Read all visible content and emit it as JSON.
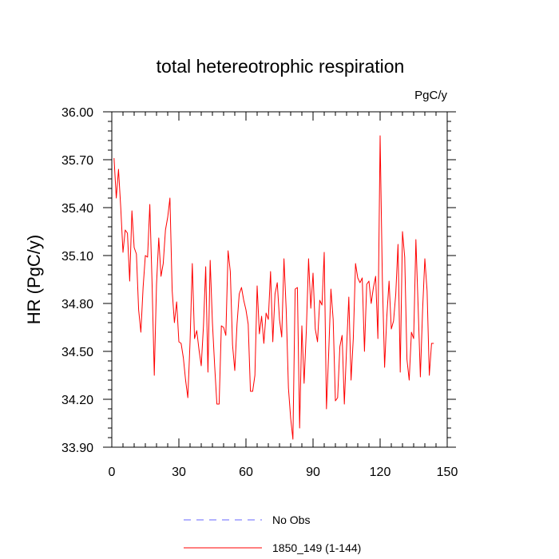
{
  "chart_data": {
    "type": "line",
    "title": "total hetereotrophic respiration",
    "units": "PgC/y",
    "ylabel": "HR  (PgC/y)",
    "xlabel": "",
    "xlim": [
      0,
      150
    ],
    "ylim": [
      33.9,
      36.0
    ],
    "xticks": [
      0,
      30,
      60,
      90,
      120,
      150
    ],
    "xtick_labels": [
      "0",
      "30",
      "60",
      "90",
      "120",
      "150"
    ],
    "yticks": [
      33.9,
      34.2,
      34.5,
      34.8,
      35.1,
      35.4,
      35.7,
      36.0
    ],
    "ytick_labels": [
      "33.90",
      "34.20",
      "34.50",
      "34.80",
      "35.10",
      "35.40",
      "35.70",
      "36.00"
    ],
    "grid": false,
    "legend_position": "bottom",
    "legend": [
      {
        "label": "No Obs",
        "color": "#6666ff",
        "style": "dashed"
      },
      {
        "label": "1850_149 (1-144)",
        "color": "#ff0000",
        "style": "solid"
      }
    ],
    "series": [
      {
        "name": "1850_149 (1-144)",
        "color": "#ff0000",
        "x": [
          1,
          2,
          3,
          4,
          5,
          6,
          7,
          8,
          9,
          10,
          11,
          12,
          13,
          14,
          15,
          16,
          17,
          18,
          19,
          20,
          21,
          22,
          23,
          24,
          25,
          26,
          27,
          28,
          29,
          30,
          31,
          32,
          33,
          34,
          35,
          36,
          37,
          38,
          39,
          40,
          41,
          42,
          43,
          44,
          45,
          46,
          47,
          48,
          49,
          50,
          51,
          52,
          53,
          54,
          55,
          56,
          57,
          58,
          59,
          60,
          61,
          62,
          63,
          64,
          65,
          66,
          67,
          68,
          69,
          70,
          71,
          72,
          73,
          74,
          75,
          76,
          77,
          78,
          79,
          80,
          81,
          82,
          83,
          84,
          85,
          86,
          87,
          88,
          89,
          90,
          91,
          92,
          93,
          94,
          95,
          96,
          97,
          98,
          99,
          100,
          101,
          102,
          103,
          104,
          105,
          106,
          107,
          108,
          109,
          110,
          111,
          112,
          113,
          114,
          115,
          116,
          117,
          118,
          119,
          120,
          121,
          122,
          123,
          124,
          125,
          126,
          127,
          128,
          129,
          130,
          131,
          132,
          133,
          134,
          135,
          136,
          137,
          138,
          139,
          140,
          141,
          142,
          143,
          144
        ],
        "y": [
          35.71,
          35.46,
          35.64,
          35.4,
          35.12,
          35.26,
          35.24,
          34.94,
          35.38,
          35.15,
          35.11,
          34.76,
          34.62,
          34.9,
          35.1,
          35.09,
          35.42,
          34.93,
          34.35,
          34.92,
          35.21,
          34.97,
          35.05,
          35.26,
          35.34,
          35.46,
          34.88,
          34.68,
          34.81,
          34.56,
          34.55,
          34.46,
          34.32,
          34.21,
          34.56,
          35.05,
          34.58,
          34.63,
          34.51,
          34.41,
          34.66,
          35.03,
          34.37,
          35.07,
          34.68,
          34.41,
          34.17,
          34.17,
          34.66,
          34.65,
          34.6,
          35.13,
          35.0,
          34.54,
          34.38,
          34.67,
          34.86,
          34.9,
          34.82,
          34.76,
          34.67,
          34.25,
          34.25,
          34.35,
          34.91,
          34.61,
          34.72,
          34.55,
          34.74,
          34.7,
          35.0,
          34.56,
          34.86,
          34.93,
          34.7,
          34.59,
          35.08,
          34.76,
          34.27,
          34.08,
          33.95,
          34.89,
          34.9,
          34.02,
          34.66,
          34.3,
          34.63,
          35.08,
          34.77,
          34.99,
          34.64,
          34.56,
          34.82,
          34.79,
          35.12,
          34.14,
          34.49,
          34.89,
          34.7,
          34.19,
          34.21,
          34.53,
          34.6,
          34.17,
          34.52,
          34.84,
          34.32,
          34.58,
          35.05,
          34.96,
          34.93,
          34.96,
          34.5,
          34.92,
          34.94,
          34.8,
          34.9,
          34.97,
          34.58,
          35.85,
          34.95,
          34.4,
          34.72,
          34.94,
          34.64,
          34.69,
          34.86,
          35.17,
          34.37,
          35.25,
          35.09,
          34.45,
          34.32,
          34.62,
          34.58,
          35.2,
          34.78,
          34.34,
          34.76,
          35.08,
          34.88,
          34.35,
          34.55,
          34.55
        ]
      }
    ]
  }
}
